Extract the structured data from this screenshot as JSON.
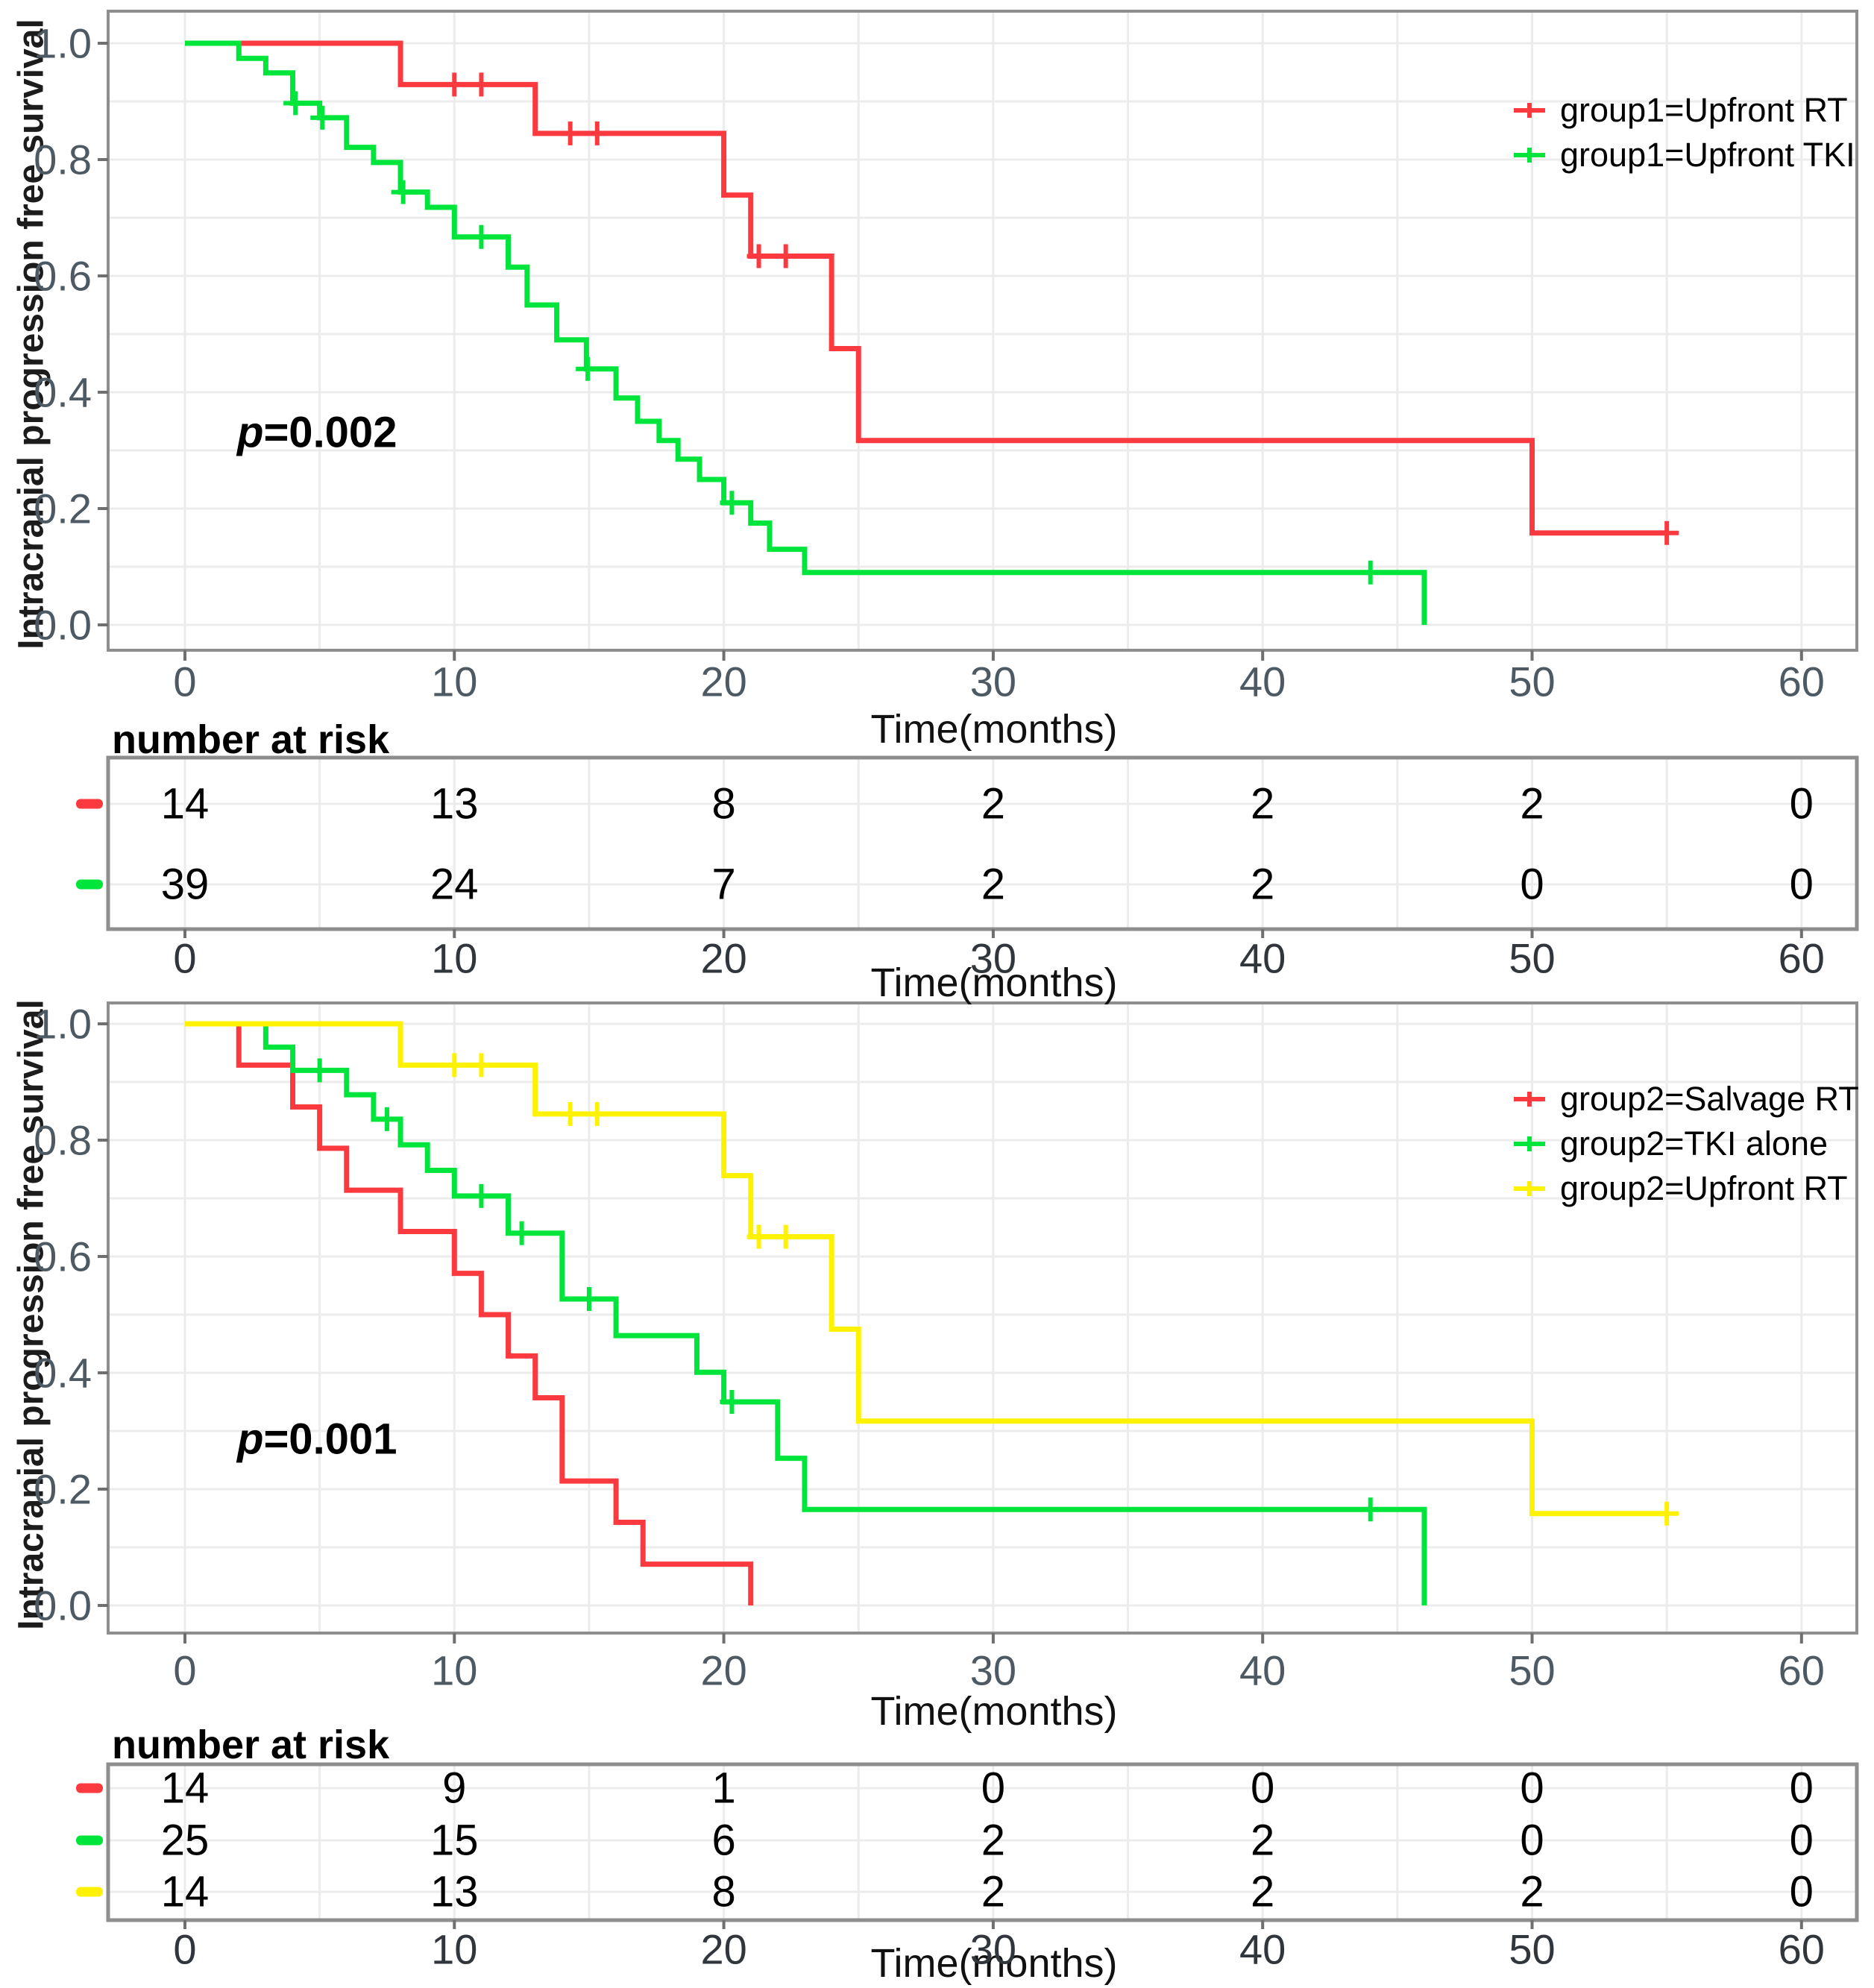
{
  "chart_data": [
    {
      "type": "line",
      "subtype": "kaplan_meier_step",
      "title": "",
      "ylabel": "Intracranial progression free survival",
      "xlabel": "Time(months)",
      "xlim": [
        0,
        60
      ],
      "ylim": [
        0.0,
        1.0
      ],
      "x_ticks": [
        "0",
        "10",
        "20",
        "30",
        "40",
        "50",
        "60"
      ],
      "y_ticks": [
        "1.0",
        "0.8",
        "0.6",
        "0.4",
        "0.2",
        "0.0"
      ],
      "grid": true,
      "legend_position": "inside-top-right",
      "annotation_p": {
        "symbol": "p",
        "rest": "=0.002"
      },
      "series": [
        {
          "name": "group1=Upfront RT",
          "color": "#fb3a40",
          "steps": [
            [
              0,
              1.0
            ],
            [
              8,
              0.929
            ],
            [
              13,
              0.845
            ],
            [
              20,
              0.739
            ],
            [
              21,
              0.634
            ],
            [
              24,
              0.475
            ],
            [
              25,
              0.317
            ],
            [
              50,
              0.158
            ]
          ],
          "censors": [
            10,
            11,
            14.3,
            15.3,
            21.3,
            22.3,
            55
          ],
          "end": 55,
          "drop_to_zero": false
        },
        {
          "name": "group1=Upfront TKI",
          "color": "#00e53c",
          "steps": [
            [
              0,
              1.0
            ],
            [
              2,
              0.974
            ],
            [
              3,
              0.949
            ],
            [
              4,
              0.897
            ],
            [
              5,
              0.872
            ],
            [
              6,
              0.821
            ],
            [
              7,
              0.795
            ],
            [
              8,
              0.744
            ],
            [
              9,
              0.718
            ],
            [
              10,
              0.667
            ],
            [
              12,
              0.615
            ],
            [
              12.7,
              0.55
            ],
            [
              13.8,
              0.49
            ],
            [
              14.9,
              0.44
            ],
            [
              16,
              0.39
            ],
            [
              16.8,
              0.35
            ],
            [
              17.6,
              0.317
            ],
            [
              18.3,
              0.285
            ],
            [
              19.1,
              0.25
            ],
            [
              20,
              0.21
            ],
            [
              21,
              0.175
            ],
            [
              21.7,
              0.13
            ],
            [
              23,
              0.09
            ]
          ],
          "censors": [
            4.1,
            5.1,
            8.1,
            11,
            14.95,
            20.3,
            44
          ],
          "end": 46,
          "drop_to_zero": true
        }
      ],
      "risk_table": {
        "title": "number at risk",
        "xlabel": "Time(months)",
        "ticks": [
          "0",
          "10",
          "20",
          "30",
          "40",
          "50",
          "60"
        ],
        "rows": [
          {
            "group": "Upfront RT",
            "color": "#fb3a40",
            "values": [
              "14",
              "13",
              "8",
              "2",
              "2",
              "2",
              "0"
            ]
          },
          {
            "group": "Upfront TKI",
            "color": "#00e53c",
            "values": [
              "39",
              "24",
              "7",
              "2",
              "2",
              "0",
              "0"
            ]
          }
        ]
      }
    },
    {
      "type": "line",
      "subtype": "kaplan_meier_step",
      "title": "",
      "ylabel": "Intracranial progression free survival",
      "xlabel": "Time(months)",
      "xlim": [
        0,
        60
      ],
      "ylim": [
        0.0,
        1.0
      ],
      "x_ticks": [
        "0",
        "10",
        "20",
        "30",
        "40",
        "50",
        "60"
      ],
      "y_ticks": [
        "1.0",
        "0.8",
        "0.6",
        "0.4",
        "0.2",
        "0.0"
      ],
      "grid": true,
      "legend_position": "inside-top-right",
      "annotation_p": {
        "symbol": "p",
        "rest": "=0.001"
      },
      "series": [
        {
          "name": "group2=Salvage RT",
          "color": "#fb3a40",
          "steps": [
            [
              0,
              1.0
            ],
            [
              2,
              0.929
            ],
            [
              4,
              0.857
            ],
            [
              5,
              0.786
            ],
            [
              6,
              0.714
            ],
            [
              8,
              0.643
            ],
            [
              10,
              0.571
            ],
            [
              11,
              0.5
            ],
            [
              12,
              0.429
            ],
            [
              13,
              0.357
            ],
            [
              14,
              0.214
            ],
            [
              16,
              0.143
            ],
            [
              17,
              0.071
            ]
          ],
          "censors": [],
          "end": 21,
          "drop_to_zero": true
        },
        {
          "name": "group2=TKI alone",
          "color": "#00e53c",
          "steps": [
            [
              0,
              1.0
            ],
            [
              3,
              0.96
            ],
            [
              4,
              0.92
            ],
            [
              6,
              0.878
            ],
            [
              7,
              0.836
            ],
            [
              8,
              0.792
            ],
            [
              9,
              0.748
            ],
            [
              10,
              0.704
            ],
            [
              12,
              0.64
            ],
            [
              14,
              0.527
            ],
            [
              16,
              0.464
            ],
            [
              19,
              0.401
            ],
            [
              20,
              0.35
            ],
            [
              22,
              0.253
            ],
            [
              23,
              0.165
            ]
          ],
          "censors": [
            5,
            7.5,
            11,
            12.5,
            15,
            20.3,
            44
          ],
          "end": 46,
          "drop_to_zero": true
        },
        {
          "name": "group2=Upfront RT",
          "color": "#fff200",
          "steps": [
            [
              0,
              1.0
            ],
            [
              8,
              0.929
            ],
            [
              13,
              0.845
            ],
            [
              20,
              0.739
            ],
            [
              21,
              0.634
            ],
            [
              24,
              0.475
            ],
            [
              25,
              0.317
            ],
            [
              50,
              0.158
            ]
          ],
          "censors": [
            10,
            11,
            14.3,
            15.3,
            21.3,
            22.3,
            55
          ],
          "end": 55,
          "drop_to_zero": false
        }
      ],
      "risk_table": {
        "title": "number at risk",
        "xlabel": "Time(months)",
        "ticks": [
          "0",
          "10",
          "20",
          "30",
          "40",
          "50",
          "60"
        ],
        "rows": [
          {
            "group": "Salvage RT",
            "color": "#fb3a40",
            "values": [
              "14",
              "9",
              "1",
              "0",
              "0",
              "0",
              "0"
            ]
          },
          {
            "group": "TKI alone",
            "color": "#00e53c",
            "values": [
              "25",
              "15",
              "6",
              "2",
              "2",
              "0",
              "0"
            ]
          },
          {
            "group": "Upfront RT",
            "color": "#fff200",
            "values": [
              "14",
              "13",
              "8",
              "2",
              "2",
              "2",
              "0"
            ]
          }
        ]
      }
    }
  ],
  "style": {
    "grid_color": "#ececec",
    "border_color": "#8e8e8e",
    "tick_text_color": "#4e5a63"
  }
}
